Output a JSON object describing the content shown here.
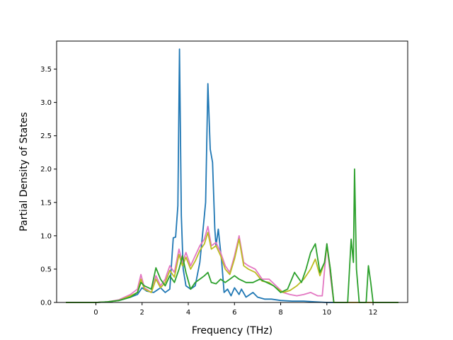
{
  "chart_data": {
    "type": "line",
    "title": "",
    "xlabel": "Frequency (THz)",
    "ylabel": "Partial Density of States",
    "xlim": [
      -1.7,
      13.5
    ],
    "ylim": [
      0,
      3.92
    ],
    "xticks": [
      0,
      2,
      4,
      6,
      8,
      10,
      12
    ],
    "yticks": [
      0.0,
      0.5,
      1.0,
      1.5,
      2.0,
      2.5,
      3.0,
      3.5
    ],
    "xtick_labels": [
      "0",
      "2",
      "4",
      "6",
      "8",
      "10",
      "12"
    ],
    "ytick_labels": [
      "0.0",
      "0.5",
      "1.0",
      "1.5",
      "2.0",
      "2.5",
      "3.0",
      "3.5"
    ],
    "grid": false,
    "legend": "none",
    "series": [
      {
        "color": "#1f77b4",
        "points": [
          [
            -1.3,
            0
          ],
          [
            0,
            0
          ],
          [
            0.5,
            0.01
          ],
          [
            1.0,
            0.03
          ],
          [
            1.5,
            0.08
          ],
          [
            1.8,
            0.12
          ],
          [
            2.0,
            0.22
          ],
          [
            2.2,
            0.17
          ],
          [
            2.5,
            0.15
          ],
          [
            2.8,
            0.22
          ],
          [
            3.0,
            0.15
          ],
          [
            3.2,
            0.2
          ],
          [
            3.35,
            0.97
          ],
          [
            3.45,
            0.98
          ],
          [
            3.55,
            1.45
          ],
          [
            3.62,
            3.8
          ],
          [
            3.7,
            1.3
          ],
          [
            3.78,
            0.5
          ],
          [
            3.9,
            0.25
          ],
          [
            4.1,
            0.2
          ],
          [
            4.3,
            0.25
          ],
          [
            4.5,
            0.6
          ],
          [
            4.65,
            1.13
          ],
          [
            4.75,
            1.5
          ],
          [
            4.85,
            3.28
          ],
          [
            4.95,
            2.3
          ],
          [
            5.05,
            2.1
          ],
          [
            5.15,
            1.1
          ],
          [
            5.2,
            0.85
          ],
          [
            5.3,
            1.1
          ],
          [
            5.45,
            0.6
          ],
          [
            5.55,
            0.15
          ],
          [
            5.7,
            0.2
          ],
          [
            5.85,
            0.1
          ],
          [
            6.0,
            0.22
          ],
          [
            6.2,
            0.12
          ],
          [
            6.3,
            0.2
          ],
          [
            6.5,
            0.08
          ],
          [
            6.8,
            0.15
          ],
          [
            7.0,
            0.08
          ],
          [
            7.3,
            0.05
          ],
          [
            7.6,
            0.05
          ],
          [
            8.0,
            0.03
          ],
          [
            8.5,
            0.02
          ],
          [
            9.0,
            0.02
          ],
          [
            9.5,
            0.01
          ],
          [
            10.0,
            0
          ],
          [
            13.1,
            0
          ]
        ]
      },
      {
        "color": "#e377c2",
        "points": [
          [
            -1.3,
            0
          ],
          [
            0,
            0
          ],
          [
            0.5,
            0.01
          ],
          [
            1.0,
            0.04
          ],
          [
            1.5,
            0.12
          ],
          [
            1.8,
            0.2
          ],
          [
            1.95,
            0.42
          ],
          [
            2.1,
            0.22
          ],
          [
            2.4,
            0.15
          ],
          [
            2.6,
            0.4
          ],
          [
            2.8,
            0.25
          ],
          [
            3.0,
            0.35
          ],
          [
            3.2,
            0.55
          ],
          [
            3.4,
            0.45
          ],
          [
            3.6,
            0.8
          ],
          [
            3.75,
            0.6
          ],
          [
            3.9,
            0.75
          ],
          [
            4.1,
            0.55
          ],
          [
            4.3,
            0.7
          ],
          [
            4.5,
            0.85
          ],
          [
            4.7,
            0.95
          ],
          [
            4.85,
            1.14
          ],
          [
            5.0,
            0.85
          ],
          [
            5.2,
            0.9
          ],
          [
            5.4,
            0.75
          ],
          [
            5.6,
            0.55
          ],
          [
            5.8,
            0.45
          ],
          [
            6.0,
            0.7
          ],
          [
            6.2,
            1.0
          ],
          [
            6.4,
            0.6
          ],
          [
            6.6,
            0.55
          ],
          [
            6.9,
            0.5
          ],
          [
            7.2,
            0.35
          ],
          [
            7.5,
            0.35
          ],
          [
            7.8,
            0.25
          ],
          [
            8.1,
            0.15
          ],
          [
            8.4,
            0.12
          ],
          [
            8.7,
            0.1
          ],
          [
            9.0,
            0.12
          ],
          [
            9.3,
            0.15
          ],
          [
            9.6,
            0.1
          ],
          [
            9.8,
            0.1
          ],
          [
            10.0,
            0.88
          ],
          [
            10.15,
            0.4
          ],
          [
            10.3,
            0
          ],
          [
            13.1,
            0
          ]
        ]
      },
      {
        "color": "#bcbd22",
        "points": [
          [
            -1.3,
            0
          ],
          [
            0,
            0
          ],
          [
            0.5,
            0.01
          ],
          [
            1.0,
            0.03
          ],
          [
            1.5,
            0.1
          ],
          [
            1.8,
            0.15
          ],
          [
            1.95,
            0.35
          ],
          [
            2.1,
            0.2
          ],
          [
            2.4,
            0.15
          ],
          [
            2.6,
            0.35
          ],
          [
            2.8,
            0.22
          ],
          [
            3.0,
            0.3
          ],
          [
            3.2,
            0.48
          ],
          [
            3.4,
            0.38
          ],
          [
            3.6,
            0.72
          ],
          [
            3.75,
            0.55
          ],
          [
            3.9,
            0.68
          ],
          [
            4.1,
            0.5
          ],
          [
            4.3,
            0.62
          ],
          [
            4.5,
            0.78
          ],
          [
            4.7,
            0.88
          ],
          [
            4.85,
            1.05
          ],
          [
            5.0,
            0.8
          ],
          [
            5.2,
            0.85
          ],
          [
            5.4,
            0.7
          ],
          [
            5.6,
            0.5
          ],
          [
            5.8,
            0.42
          ],
          [
            6.0,
            0.65
          ],
          [
            6.2,
            0.95
          ],
          [
            6.4,
            0.55
          ],
          [
            6.6,
            0.5
          ],
          [
            6.9,
            0.45
          ],
          [
            7.2,
            0.32
          ],
          [
            7.5,
            0.3
          ],
          [
            7.8,
            0.22
          ],
          [
            8.1,
            0.15
          ],
          [
            8.4,
            0.18
          ],
          [
            8.7,
            0.25
          ],
          [
            9.0,
            0.35
          ],
          [
            9.3,
            0.5
          ],
          [
            9.5,
            0.65
          ],
          [
            9.7,
            0.4
          ],
          [
            9.9,
            0.6
          ],
          [
            10.0,
            0.85
          ],
          [
            10.15,
            0.5
          ],
          [
            10.3,
            0
          ],
          [
            13.1,
            0
          ]
        ]
      },
      {
        "color": "#2ca02c",
        "points": [
          [
            -1.3,
            0
          ],
          [
            0,
            0
          ],
          [
            0.5,
            0.01
          ],
          [
            1.0,
            0.03
          ],
          [
            1.5,
            0.08
          ],
          [
            1.8,
            0.15
          ],
          [
            1.95,
            0.3
          ],
          [
            2.1,
            0.25
          ],
          [
            2.4,
            0.2
          ],
          [
            2.6,
            0.52
          ],
          [
            2.8,
            0.35
          ],
          [
            3.0,
            0.25
          ],
          [
            3.2,
            0.4
          ],
          [
            3.4,
            0.3
          ],
          [
            3.6,
            0.5
          ],
          [
            3.75,
            0.7
          ],
          [
            3.9,
            0.45
          ],
          [
            4.1,
            0.2
          ],
          [
            4.3,
            0.3
          ],
          [
            4.5,
            0.35
          ],
          [
            4.7,
            0.4
          ],
          [
            4.85,
            0.45
          ],
          [
            5.0,
            0.3
          ],
          [
            5.2,
            0.28
          ],
          [
            5.4,
            0.35
          ],
          [
            5.6,
            0.3
          ],
          [
            5.8,
            0.35
          ],
          [
            6.0,
            0.4
          ],
          [
            6.2,
            0.35
          ],
          [
            6.5,
            0.3
          ],
          [
            6.8,
            0.3
          ],
          [
            7.1,
            0.35
          ],
          [
            7.4,
            0.3
          ],
          [
            7.7,
            0.25
          ],
          [
            8.0,
            0.15
          ],
          [
            8.3,
            0.2
          ],
          [
            8.6,
            0.45
          ],
          [
            8.9,
            0.3
          ],
          [
            9.1,
            0.5
          ],
          [
            9.3,
            0.75
          ],
          [
            9.5,
            0.88
          ],
          [
            9.7,
            0.45
          ],
          [
            9.9,
            0.6
          ],
          [
            10.0,
            0.88
          ],
          [
            10.15,
            0.5
          ],
          [
            10.3,
            0
          ],
          [
            10.9,
            0
          ],
          [
            11.05,
            0.95
          ],
          [
            11.15,
            0.6
          ],
          [
            11.2,
            2.0
          ],
          [
            11.28,
            0.5
          ],
          [
            11.4,
            0
          ],
          [
            11.7,
            0
          ],
          [
            11.8,
            0.55
          ],
          [
            11.9,
            0.3
          ],
          [
            12.0,
            0
          ],
          [
            13.1,
            0
          ]
        ]
      }
    ]
  }
}
